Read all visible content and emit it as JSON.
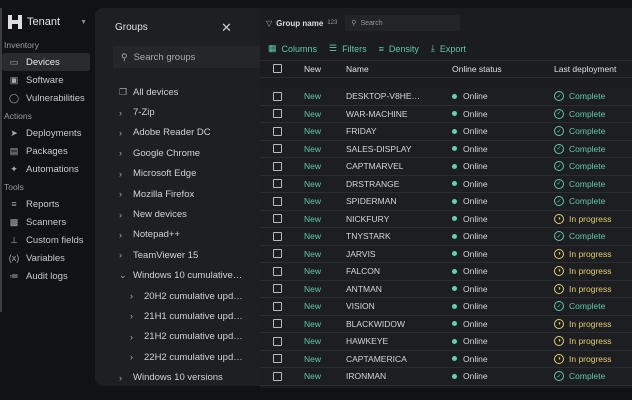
{
  "sidebar": {
    "tenant": "Tenant",
    "sections": [
      {
        "label": "Inventory",
        "items": [
          {
            "label": "Devices",
            "icon": "monitor-icon",
            "active": true
          },
          {
            "label": "Software",
            "icon": "window-icon"
          },
          {
            "label": "Vulnerabilities",
            "icon": "shield-icon"
          }
        ]
      },
      {
        "label": "Actions",
        "items": [
          {
            "label": "Deployments",
            "icon": "rocket-icon"
          },
          {
            "label": "Packages",
            "icon": "archive-icon"
          },
          {
            "label": "Automations",
            "icon": "magic-wand-icon"
          }
        ]
      },
      {
        "label": "Tools",
        "items": [
          {
            "label": "Reports",
            "icon": "list-icon"
          },
          {
            "label": "Scanners",
            "icon": "scanner-icon"
          },
          {
            "label": "Custom fields",
            "icon": "fields-icon"
          },
          {
            "label": "Variables",
            "icon": "variable-icon"
          },
          {
            "label": "Audit logs",
            "icon": "audit-icon"
          }
        ]
      }
    ]
  },
  "groups": {
    "title": "Groups",
    "search_placeholder": "Search groups",
    "all": "All devices",
    "items": [
      {
        "label": "7-Zip",
        "open": false,
        "sub": false
      },
      {
        "label": "Adobe Reader DC",
        "open": false,
        "sub": false
      },
      {
        "label": "Google Chrome",
        "open": false,
        "sub": false
      },
      {
        "label": "Microsoft Edge",
        "open": false,
        "sub": false
      },
      {
        "label": "Mozilla Firefox",
        "open": false,
        "sub": false
      },
      {
        "label": "New devices",
        "open": false,
        "sub": false
      },
      {
        "label": "Notepad++",
        "open": false,
        "sub": false
      },
      {
        "label": "TeamViewer 15",
        "open": false,
        "sub": false
      },
      {
        "label": "Windows 10 cumulative…",
        "open": true,
        "sub": false
      },
      {
        "label": "20H2 cumulative upd…",
        "open": false,
        "sub": true
      },
      {
        "label": "21H1 cumulative upd…",
        "open": false,
        "sub": true
      },
      {
        "label": "21H2 cumulative upd…",
        "open": false,
        "sub": true
      },
      {
        "label": "22H2 cumulative upd…",
        "open": false,
        "sub": true
      },
      {
        "label": "Windows 10 versions",
        "open": false,
        "sub": false
      }
    ]
  },
  "main": {
    "group_by": "Group name",
    "group_count": "123",
    "search_placeholder": "Search",
    "toolbar": {
      "columns": "Columns",
      "filters": "Filters",
      "density": "Density",
      "export": "Export"
    },
    "columns": {
      "new": "New",
      "name": "Name",
      "online": "Online status",
      "deployment": "Last deployment"
    },
    "colors": {
      "accent": "#5fc9a8",
      "in_progress": "#e2cf6a"
    },
    "rows": [
      {
        "new": "New",
        "name": "DESKTOP-V8HE…",
        "online": "Online",
        "deployment": "Complete"
      },
      {
        "new": "New",
        "name": "WAR-MACHINE",
        "online": "Online",
        "deployment": "Complete"
      },
      {
        "new": "New",
        "name": "FRIDAY",
        "online": "Online",
        "deployment": "Complete"
      },
      {
        "new": "New",
        "name": "SALES-DISPLAY",
        "online": "Online",
        "deployment": "Complete"
      },
      {
        "new": "New",
        "name": "CAPTMARVEL",
        "online": "Online",
        "deployment": "Complete"
      },
      {
        "new": "New",
        "name": "DRSTRANGE",
        "online": "Online",
        "deployment": "Complete"
      },
      {
        "new": "New",
        "name": "SPIDERMAN",
        "online": "Online",
        "deployment": "Complete"
      },
      {
        "new": "New",
        "name": "NICKFURY",
        "online": "Online",
        "deployment": "In progress"
      },
      {
        "new": "New",
        "name": "TNYSTARK",
        "online": "Online",
        "deployment": "Complete"
      },
      {
        "new": "New",
        "name": "JARVIS",
        "online": "Online",
        "deployment": "In progress"
      },
      {
        "new": "New",
        "name": "FALCON",
        "online": "Online",
        "deployment": "In progress"
      },
      {
        "new": "New",
        "name": "ANTMAN",
        "online": "Online",
        "deployment": "In progress"
      },
      {
        "new": "New",
        "name": "VISION",
        "online": "Online",
        "deployment": "Complete"
      },
      {
        "new": "New",
        "name": "BLACKWIDOW",
        "online": "Online",
        "deployment": "In progress"
      },
      {
        "new": "New",
        "name": "HAWKEYE",
        "online": "Online",
        "deployment": "In progress"
      },
      {
        "new": "New",
        "name": "CAPTAMERICA",
        "online": "Online",
        "deployment": "In progress"
      },
      {
        "new": "New",
        "name": "IRONMAN",
        "online": "Online",
        "deployment": "Complete"
      }
    ]
  }
}
